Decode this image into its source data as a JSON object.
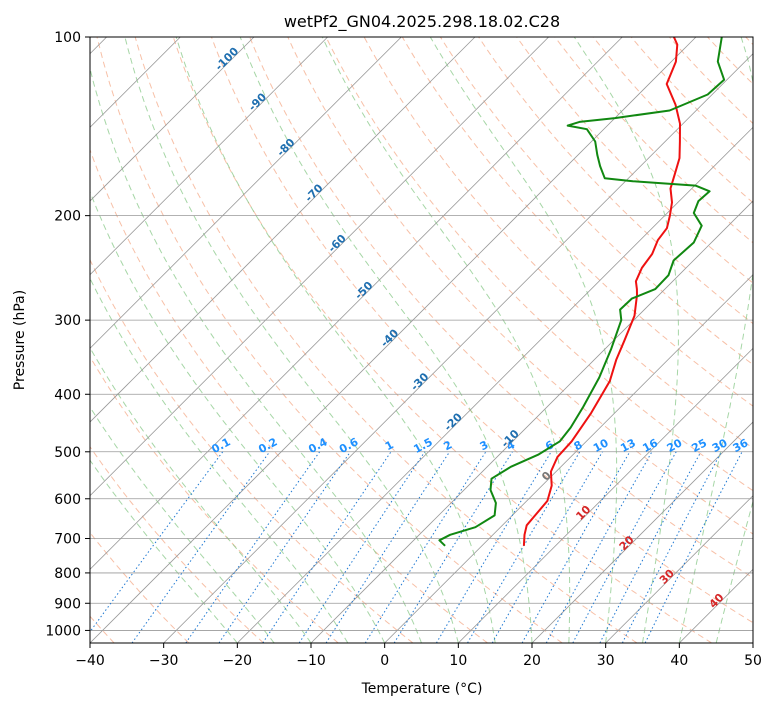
{
  "chart_data": {
    "type": "line",
    "title": "wetPf2_GN04.2025.298.18.02.C28",
    "xlabel": "Temperature (°C)",
    "ylabel": "Pressure (hPa)",
    "xlim": [
      -40,
      50
    ],
    "ylim": [
      1050,
      100
    ],
    "y_scale": "log",
    "grid": true,
    "x_ticks": [
      -40,
      -30,
      -20,
      -10,
      0,
      10,
      20,
      30,
      40,
      50
    ],
    "y_ticks": [
      100,
      200,
      300,
      400,
      500,
      600,
      700,
      800,
      900,
      1000
    ],
    "colors": {
      "temperature": "#ee1111",
      "dewpoint": "#118811",
      "dry_adiabats": "#f4a582",
      "moist_adiabats": "#88c888",
      "mixing_ratio": "#1e78d2",
      "isotherms": "#999999"
    },
    "series": [
      {
        "color": "#ee1111",
        "points": [
          [
            5.7,
            720
          ],
          [
            4.3,
            690
          ],
          [
            3.3,
            665
          ],
          [
            3.1,
            640
          ],
          [
            2.8,
            605
          ],
          [
            1.3,
            570
          ],
          [
            -0.7,
            540
          ],
          [
            -1.8,
            510
          ],
          [
            -2.0,
            480
          ],
          [
            -3.2,
            430
          ],
          [
            -5.0,
            380
          ],
          [
            -7.0,
            350
          ],
          [
            -8.5,
            325
          ],
          [
            -10.5,
            295
          ],
          [
            -13.0,
            272
          ],
          [
            -13.8,
            266
          ],
          [
            -15.0,
            258
          ],
          [
            -16.0,
            245
          ],
          [
            -16.5,
            232
          ],
          [
            -17.6,
            220
          ],
          [
            -18.0,
            210
          ],
          [
            -19.3,
            200
          ],
          [
            -20.8,
            190
          ],
          [
            -22.9,
            180
          ],
          [
            -24.3,
            170
          ],
          [
            -25.8,
            160
          ],
          [
            -28.0,
            150
          ],
          [
            -30.4,
            140
          ],
          [
            -33.6,
            130
          ],
          [
            -37.6,
            120
          ],
          [
            -39.4,
            110
          ],
          [
            -41.5,
            103
          ],
          [
            -43.0,
            100
          ]
        ]
      },
      {
        "color": "#118811",
        "points": [
          [
            -5.0,
            720
          ],
          [
            -6.5,
            705
          ],
          [
            -5.8,
            690
          ],
          [
            -3.4,
            670
          ],
          [
            -2.4,
            640
          ],
          [
            -3.9,
            610
          ],
          [
            -6.4,
            580
          ],
          [
            -7.8,
            555
          ],
          [
            -6.8,
            530
          ],
          [
            -4.7,
            505
          ],
          [
            -3.6,
            480
          ],
          [
            -4.0,
            455
          ],
          [
            -5.1,
            420
          ],
          [
            -6.9,
            375
          ],
          [
            -9.2,
            335
          ],
          [
            -11.7,
            300
          ],
          [
            -13.3,
            288
          ],
          [
            -13.2,
            276
          ],
          [
            -11.3,
            266
          ],
          [
            -11.4,
            252
          ],
          [
            -12.7,
            238
          ],
          [
            -12.4,
            222
          ],
          [
            -13.6,
            208
          ],
          [
            -16.4,
            198
          ],
          [
            -17.4,
            189
          ],
          [
            -17.2,
            182
          ],
          [
            -19.9,
            178
          ],
          [
            -29.0,
            175
          ],
          [
            -33.2,
            173
          ],
          [
            -35.5,
            165
          ],
          [
            -37.4,
            158
          ],
          [
            -39.5,
            150
          ],
          [
            -42.3,
            143
          ],
          [
            -45.4,
            141
          ],
          [
            -44.3,
            139
          ],
          [
            -40.0,
            137
          ],
          [
            -33.6,
            133
          ],
          [
            -30.6,
            125
          ],
          [
            -30.4,
            118
          ],
          [
            -33.7,
            110
          ],
          [
            -36.5,
            100
          ]
        ]
      }
    ],
    "annotations": {
      "dry_adiabat_labels": [
        "-100",
        "-90",
        "-80",
        "-70",
        "-60",
        "-50",
        "-40",
        "-30",
        "-20",
        "-10",
        "0",
        "10",
        "20",
        "30",
        "40"
      ],
      "mixing_ratio_labels": [
        "0.1",
        "0.2",
        "0.4",
        "0.6",
        "1",
        "1.5",
        "2",
        "3",
        "4",
        "6",
        "8",
        "10",
        "13",
        "16",
        "20",
        "25",
        "30",
        "36"
      ]
    }
  }
}
